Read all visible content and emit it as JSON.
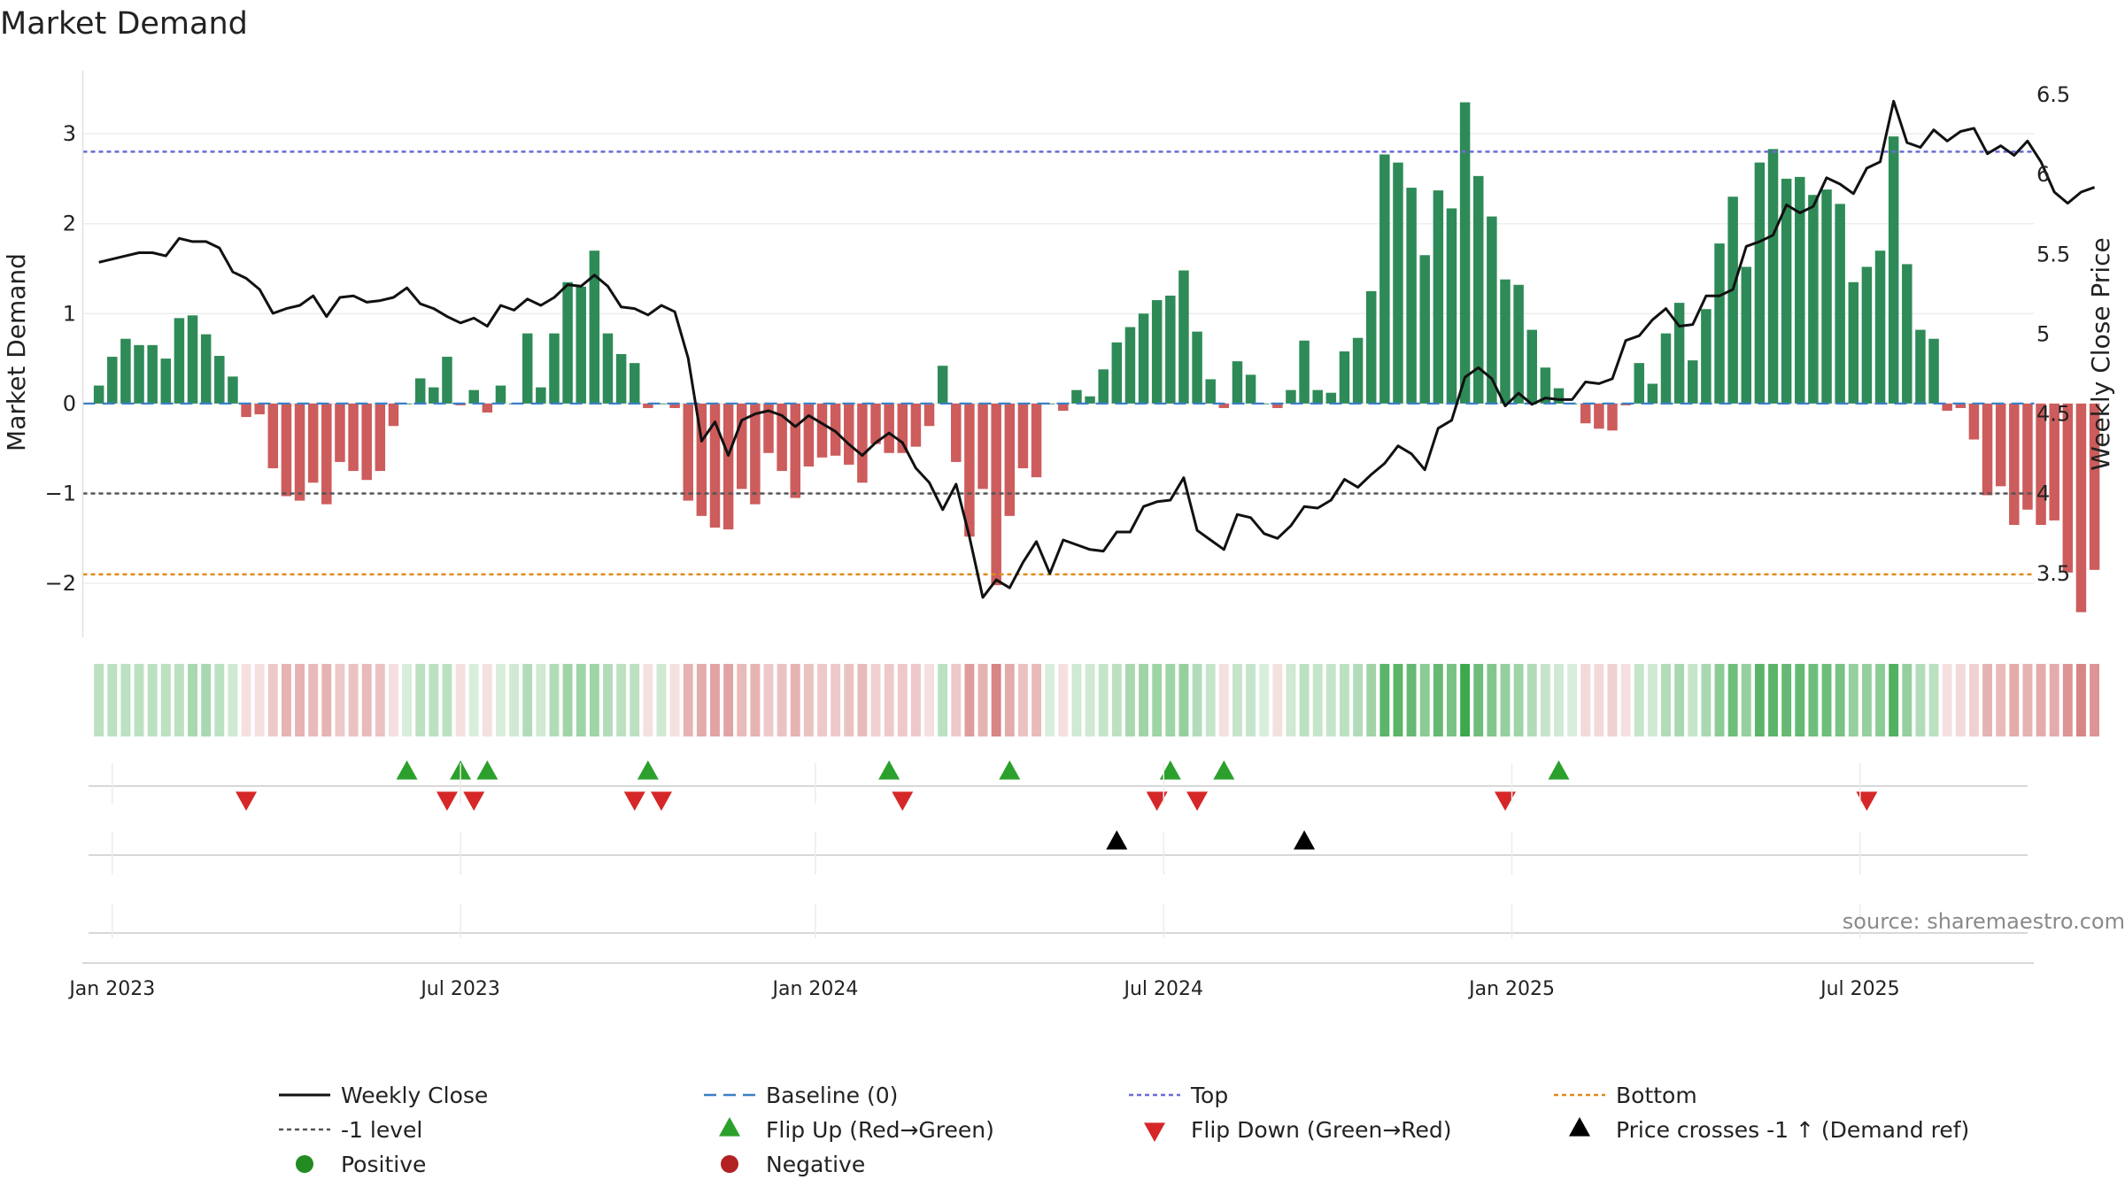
{
  "chart_data": {
    "type": "bar",
    "title": "Market Demand",
    "xlabel": "",
    "ylabel": "Market Demand",
    "y2label": "Weekly Close Price",
    "ylim": [
      -2.6,
      3.7
    ],
    "y2lim": [
      3.1,
      6.65
    ],
    "yticks": [
      -2,
      -1,
      0,
      1,
      2,
      3
    ],
    "yticks_labels": [
      "−2",
      "−1",
      "0",
      "1",
      "2",
      "3"
    ],
    "y2ticks": [
      3.5,
      4,
      4.5,
      5,
      5.5,
      6,
      6.5
    ],
    "y2ticks_labels": [
      "3.5",
      "4",
      "4.5",
      "5",
      "5.5",
      "6",
      "6.5"
    ],
    "xlim": [
      -1.2,
      144.5
    ],
    "xticks": [
      {
        "label": "Jan 2023",
        "week": 1
      },
      {
        "label": "Jul 2023",
        "week": 27
      },
      {
        "label": "Jan 2024",
        "week": 53.5
      },
      {
        "label": "Jul 2024",
        "week": 79.5
      },
      {
        "label": "Jan 2025",
        "week": 105.5
      },
      {
        "label": "Jul 2025",
        "week": 131.5
      }
    ],
    "reference_lines": {
      "top": 2.8,
      "minus_one": -1,
      "bottom": -1.9,
      "baseline": 0
    },
    "demand": [
      0.2,
      0.52,
      0.72,
      0.65,
      0.65,
      0.5,
      0.95,
      0.98,
      0.77,
      0.53,
      0.3,
      -0.15,
      -0.12,
      -0.72,
      -1.03,
      -1.08,
      -0.88,
      -1.12,
      -0.65,
      -0.75,
      -0.85,
      -0.75,
      -0.25,
      0.0,
      0.28,
      0.18,
      0.52,
      -0.02,
      0.15,
      -0.1,
      0.2,
      0.0,
      0.78,
      0.18,
      0.78,
      1.35,
      1.3,
      1.7,
      0.78,
      0.55,
      0.45,
      -0.05,
      0.0,
      -0.05,
      -1.08,
      -1.25,
      -1.38,
      -1.4,
      -0.95,
      -1.12,
      -0.55,
      -0.75,
      -1.05,
      -0.7,
      -0.6,
      -0.58,
      -0.68,
      -0.88,
      -0.45,
      -0.55,
      -0.55,
      -0.48,
      -0.25,
      0.42,
      -0.65,
      -1.48,
      -0.95,
      -2.02,
      -1.25,
      -0.72,
      -0.82,
      0.0,
      -0.08,
      0.15,
      0.08,
      0.38,
      0.68,
      0.85,
      1.0,
      1.15,
      1.2,
      1.48,
      0.8,
      0.27,
      -0.05,
      0.47,
      0.32,
      0.0,
      -0.05,
      0.15,
      0.7,
      0.15,
      0.12,
      0.58,
      0.73,
      1.25,
      2.77,
      2.68,
      2.4,
      1.65,
      2.37,
      2.17,
      3.35,
      2.53,
      2.08,
      1.38,
      1.32,
      0.82,
      0.4,
      0.17,
      0.0,
      -0.22,
      -0.28,
      -0.3,
      -0.02,
      0.45,
      0.22,
      0.78,
      1.12,
      0.48,
      1.05,
      1.78,
      2.3,
      1.52,
      2.68,
      2.83,
      2.5,
      2.52,
      2.32,
      2.38,
      2.22,
      1.35,
      1.52,
      1.7,
      2.97,
      1.55,
      0.82,
      0.72,
      -0.08,
      -0.05,
      -0.4,
      -1.02,
      -0.92,
      -1.35,
      -1.18,
      -1.35,
      -1.3,
      -1.88,
      -2.32,
      -1.85
    ],
    "weekly_close": [
      5.45,
      5.47,
      5.49,
      5.51,
      5.51,
      5.49,
      5.6,
      5.58,
      5.58,
      5.54,
      5.39,
      5.35,
      5.28,
      5.13,
      5.16,
      5.18,
      5.24,
      5.11,
      5.23,
      5.24,
      5.2,
      5.21,
      5.23,
      5.29,
      5.19,
      5.16,
      5.11,
      5.07,
      5.1,
      5.05,
      5.18,
      5.15,
      5.22,
      5.18,
      5.23,
      5.31,
      5.3,
      5.37,
      5.3,
      5.17,
      5.16,
      5.12,
      5.18,
      5.14,
      4.85,
      4.33,
      4.45,
      4.24,
      4.46,
      4.5,
      4.52,
      4.49,
      4.42,
      4.49,
      4.44,
      4.39,
      4.31,
      4.24,
      4.32,
      4.38,
      4.32,
      4.16,
      4.07,
      3.9,
      4.06,
      3.73,
      3.35,
      3.46,
      3.41,
      3.57,
      3.7,
      3.5,
      3.71,
      3.68,
      3.65,
      3.64,
      3.76,
      3.76,
      3.92,
      3.95,
      3.96,
      4.1,
      3.77,
      3.71,
      3.65,
      3.87,
      3.85,
      3.75,
      3.72,
      3.8,
      3.92,
      3.91,
      3.96,
      4.09,
      4.04,
      4.12,
      4.19,
      4.3,
      4.25,
      4.15,
      4.41,
      4.46,
      4.73,
      4.79,
      4.72,
      4.55,
      4.63,
      4.56,
      4.6,
      4.59,
      4.59,
      4.7,
      4.69,
      4.72,
      4.96,
      4.99,
      5.09,
      5.16,
      5.05,
      5.06,
      5.24,
      5.24,
      5.28,
      5.55,
      5.58,
      5.62,
      5.81,
      5.76,
      5.8,
      5.98,
      5.94,
      5.88,
      6.04,
      6.08,
      6.46,
      6.2,
      6.17,
      6.28,
      6.21,
      6.27,
      6.29,
      6.13,
      6.18,
      6.12,
      6.21,
      6.08,
      5.89,
      5.82,
      5.89,
      5.92
    ],
    "band_intensity": [
      0.35,
      0.35,
      0.35,
      0.35,
      0.35,
      0.35,
      0.35,
      0.45,
      0.45,
      0.35,
      0.25,
      0.2,
      0.2,
      0.35,
      0.5,
      0.5,
      0.45,
      0.5,
      0.35,
      0.4,
      0.45,
      0.4,
      0.2,
      0.2,
      0.35,
      0.35,
      0.35,
      0.2,
      0.2,
      0.2,
      0.2,
      0.25,
      0.4,
      0.25,
      0.4,
      0.5,
      0.5,
      0.5,
      0.4,
      0.35,
      0.35,
      0.2,
      0.25,
      0.2,
      0.5,
      0.55,
      0.6,
      0.6,
      0.45,
      0.5,
      0.35,
      0.4,
      0.5,
      0.4,
      0.35,
      0.35,
      0.4,
      0.45,
      0.3,
      0.35,
      0.35,
      0.35,
      0.2,
      0.35,
      0.35,
      0.65,
      0.5,
      0.8,
      0.55,
      0.4,
      0.45,
      0.2,
      0.2,
      0.25,
      0.25,
      0.3,
      0.35,
      0.45,
      0.5,
      0.5,
      0.5,
      0.55,
      0.4,
      0.3,
      0.2,
      0.3,
      0.3,
      0.2,
      0.2,
      0.25,
      0.35,
      0.3,
      0.3,
      0.35,
      0.4,
      0.5,
      0.85,
      0.85,
      0.8,
      0.6,
      0.8,
      0.7,
      1.0,
      0.75,
      0.65,
      0.55,
      0.5,
      0.4,
      0.3,
      0.25,
      0.2,
      0.25,
      0.25,
      0.3,
      0.2,
      0.3,
      0.25,
      0.4,
      0.45,
      0.3,
      0.45,
      0.6,
      0.75,
      0.55,
      0.85,
      0.85,
      0.8,
      0.8,
      0.75,
      0.75,
      0.7,
      0.55,
      0.55,
      0.6,
      0.9,
      0.55,
      0.4,
      0.35,
      0.2,
      0.25,
      0.3,
      0.5,
      0.45,
      0.55,
      0.5,
      0.55,
      0.55,
      0.7,
      0.8,
      0.7
    ],
    "flip_up_weeks": [
      23,
      27,
      29,
      41,
      59,
      68,
      80,
      84,
      109
    ],
    "flip_down_weeks": [
      11,
      26,
      28,
      40,
      42,
      60,
      79,
      82,
      105,
      132
    ],
    "price_cross_weeks": [
      76,
      90
    ],
    "legend": {
      "placement": "bottom",
      "items": [
        {
          "key": "close",
          "label": "Weekly Close",
          "color": "#111111"
        },
        {
          "key": "baseline",
          "label": "Baseline (0)",
          "color": "#3b7fc4"
        },
        {
          "key": "top",
          "label": "Top",
          "color": "#6a6ad8"
        },
        {
          "key": "bottom",
          "label": "Bottom",
          "color": "#e08a1a"
        },
        {
          "key": "minus1",
          "label": "-1 level",
          "color": "#555555"
        },
        {
          "key": "flipup",
          "label": "Flip Up (Red→Green)",
          "color": "#2ca02c"
        },
        {
          "key": "flipdown",
          "label": "Flip Down (Green→Red)",
          "color": "#d62728"
        },
        {
          "key": "cross",
          "label": "Price crosses -1 ↑ (Demand ref)",
          "color": "#000000"
        },
        {
          "key": "pos",
          "label": "Positive",
          "color": "#228b22"
        },
        {
          "key": "neg",
          "label": "Negative",
          "color": "#b22222"
        }
      ]
    },
    "colors": {
      "positive_bar": "#2e8b57",
      "negative_bar": "#cd5c5c",
      "band_green": "#3ea84f",
      "band_red": "#cd6666",
      "flip_up": "#2ca02c",
      "flip_down": "#d62728",
      "cross": "#000000",
      "close_line": "#111111",
      "baseline": "#3b7fc4",
      "top": "#6a6ad8",
      "bottom": "#e08a1a",
      "minus1": "#555555"
    },
    "source": "source: sharemaestro.com"
  }
}
